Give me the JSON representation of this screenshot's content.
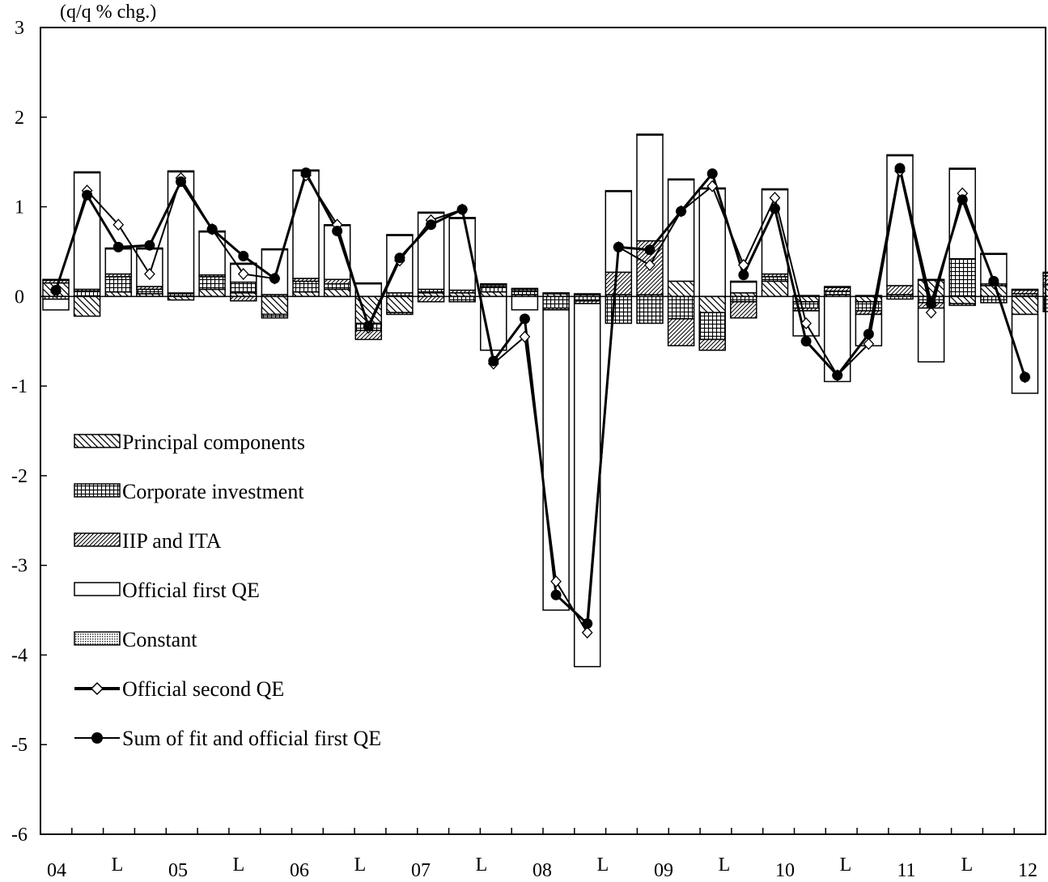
{
  "chart_data": {
    "type": "bar",
    "unit_label": "(q/q % chg.)",
    "ylim": [
      -6,
      3
    ],
    "y_ticks": [
      "3",
      "2",
      "1",
      "0",
      "-1",
      "-2",
      "-3",
      "-4",
      "-5",
      "-6"
    ],
    "x_tick_labels": [
      "04",
      "L",
      "05",
      "L",
      "06",
      "L",
      "07",
      "L",
      "08",
      "L",
      "09",
      "L",
      "10",
      "L",
      "11",
      "L",
      "12"
    ],
    "legend_position": "left-middle",
    "colors": {
      "axis": "#000000",
      "bar_fill": "#ffffff",
      "line": "#000000"
    },
    "categories": [
      "04Q1",
      "04Q2",
      "04Q3",
      "04Q4",
      "05Q1",
      "05Q2",
      "05Q3",
      "05Q4",
      "06Q1",
      "06Q2",
      "06Q3",
      "06Q4",
      "07Q1",
      "07Q2",
      "07Q3",
      "07Q4",
      "08Q1",
      "08Q2",
      "08Q3",
      "08Q4",
      "09Q1",
      "09Q2",
      "09Q3",
      "09Q4",
      "10Q1",
      "10Q2",
      "10Q3",
      "10Q4",
      "11Q1",
      "11Q2",
      "11Q3",
      "11Q4",
      "12Q1"
    ],
    "stacked_series": [
      {
        "name": "Principal components",
        "pattern": "diag-down",
        "values": [
          0.15,
          -0.22,
          0.05,
          0.03,
          -0.04,
          0.08,
          0.04,
          -0.2,
          0.05,
          0.08,
          -0.3,
          -0.18,
          0.04,
          0.04,
          0.05,
          0.02,
          0.03,
          0.02,
          0.02,
          0.02,
          0.17,
          -0.18,
          0.04,
          0.17,
          -0.06,
          0.02,
          -0.06,
          0.02,
          0.18,
          -0.08,
          0.12,
          -0.2,
          0.13
        ]
      },
      {
        "name": "Corporate investment",
        "pattern": "grid",
        "values": [
          -0.03,
          0.06,
          0.17,
          0.05,
          0.03,
          0.14,
          0.12,
          -0.04,
          0.12,
          0.06,
          -0.08,
          0.04,
          0.04,
          -0.06,
          0.06,
          0.04,
          -0.13,
          -0.05,
          -0.3,
          -0.3,
          -0.25,
          -0.3,
          -0.06,
          0.05,
          -0.07,
          0.04,
          -0.1,
          -0.03,
          -0.07,
          0.42,
          -0.07,
          0.03,
          -0.17
        ]
      },
      {
        "name": "IIP and ITA",
        "pattern": "diag-up",
        "values": [
          0.03,
          0.02,
          0.03,
          0.03,
          0.01,
          0.02,
          -0.05,
          0.02,
          0.03,
          0.05,
          -0.1,
          -0.02,
          -0.06,
          0.03,
          0.02,
          0.02,
          -0.02,
          -0.03,
          0.25,
          0.6,
          -0.3,
          -0.12,
          -0.18,
          0.03,
          -0.03,
          0.04,
          -0.04,
          0.1,
          -0.06,
          -0.02,
          0.02,
          0.04,
          0.1
        ]
      },
      {
        "name": "Official first QE",
        "pattern": "blank",
        "values": [
          -0.12,
          1.3,
          0.28,
          0.42,
          1.35,
          0.48,
          0.2,
          0.5,
          1.2,
          0.6,
          0.14,
          0.64,
          0.85,
          0.8,
          -0.6,
          -0.15,
          -3.35,
          -4.05,
          0.9,
          1.18,
          1.13,
          1.2,
          0.12,
          0.94,
          -0.28,
          -0.95,
          -0.35,
          1.45,
          -0.6,
          1.0,
          0.33,
          -0.88,
          0.03
        ]
      },
      {
        "name": "Constant",
        "pattern": "dots",
        "values": [
          0.01,
          0.01,
          0.01,
          0.01,
          0.01,
          0.01,
          0.01,
          0.01,
          0.01,
          0.01,
          0.01,
          0.01,
          0.01,
          0.01,
          0.01,
          0.01,
          0.01,
          0.01,
          0.01,
          0.01,
          0.01,
          0.01,
          0.01,
          0.01,
          0.01,
          0.01,
          0.01,
          0.01,
          0.01,
          0.01,
          0.01,
          0.01,
          0.01
        ]
      }
    ],
    "line_series": [
      {
        "name": "Official second QE",
        "marker": "diamond",
        "values": [
          0.05,
          1.18,
          0.8,
          0.25,
          1.32,
          0.75,
          0.25,
          0.2,
          1.35,
          0.8,
          -0.35,
          0.4,
          0.85,
          0.97,
          -0.75,
          -0.45,
          -3.18,
          -3.75,
          0.55,
          0.35,
          0.95,
          1.23,
          0.35,
          1.1,
          -0.3,
          -0.88,
          -0.53,
          1.4,
          -0.18,
          1.15,
          0.15,
          -0.9,
          null
        ]
      },
      {
        "name": "Sum of fit and official first QE",
        "marker": "circle",
        "values": [
          0.07,
          1.13,
          0.55,
          0.57,
          1.28,
          0.75,
          0.45,
          0.2,
          1.38,
          0.73,
          -0.33,
          0.43,
          0.8,
          0.97,
          -0.72,
          -0.25,
          -3.33,
          -3.65,
          0.55,
          0.52,
          0.95,
          1.37,
          0.24,
          0.98,
          -0.5,
          -0.88,
          -0.42,
          1.43,
          -0.08,
          1.08,
          0.17,
          -0.9,
          null
        ]
      }
    ]
  }
}
